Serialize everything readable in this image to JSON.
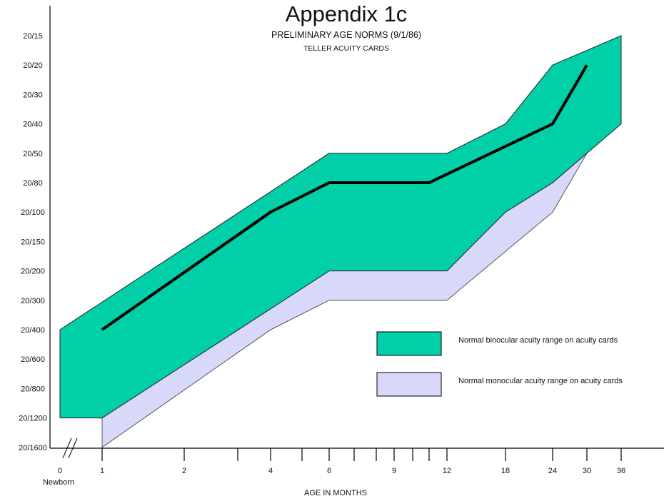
{
  "chart_data": {
    "type": "area",
    "title": "Appendix 1c",
    "subtitle": "PRELIMINARY AGE NORMS (9/1/86)",
    "subtitle2": "TELLER ACUITY CARDS",
    "xlabel": "AGE IN MONTHS",
    "ylabel": "",
    "x_ticks": [
      {
        "value": 0,
        "label": "0"
      },
      {
        "value": 1,
        "label": "1"
      },
      {
        "value": 2,
        "label": "2"
      },
      {
        "value": 3,
        "label": ""
      },
      {
        "value": 4,
        "label": "4"
      },
      {
        "value": 5,
        "label": ""
      },
      {
        "value": 6,
        "label": "6"
      },
      {
        "value": 7,
        "label": ""
      },
      {
        "value": 8,
        "label": ""
      },
      {
        "value": 9,
        "label": "9"
      },
      {
        "value": 10,
        "label": ""
      },
      {
        "value": 11,
        "label": ""
      },
      {
        "value": 12,
        "label": "12"
      },
      {
        "value": 18,
        "label": "18"
      },
      {
        "value": 24,
        "label": "24"
      },
      {
        "value": 30,
        "label": "30"
      },
      {
        "value": 36,
        "label": "36"
      }
    ],
    "x_sublabel": {
      "value": 0,
      "label": "Newborn"
    },
    "y_ticks": [
      "20/15",
      "20/20",
      "20/30",
      "20/40",
      "20/50",
      "20/80",
      "20/100",
      "20/150",
      "20/200",
      "20/300",
      "20/400",
      "20/600",
      "20/800",
      "20/1200",
      "20/1600"
    ],
    "series": [
      {
        "name": "Normal binocular acuity range on acuity cards",
        "color": "#00cfa8",
        "upper": [
          [
            0,
            "20/400"
          ],
          [
            6,
            "20/50"
          ],
          [
            12,
            "20/50"
          ],
          [
            18,
            "20/40"
          ],
          [
            24,
            "20/20"
          ],
          [
            36,
            "20/15"
          ]
        ],
        "lower": [
          [
            0,
            "20/1200"
          ],
          [
            1,
            "20/1200"
          ],
          [
            6,
            "20/200"
          ],
          [
            12,
            "20/200"
          ],
          [
            18,
            "20/100"
          ],
          [
            24,
            "20/80"
          ],
          [
            30,
            "20/50"
          ],
          [
            36,
            "20/40"
          ]
        ]
      },
      {
        "name": "Normal monocular acuity range on acuity cards",
        "color": "#d8d8fa",
        "upper": [
          [
            1,
            "20/1200"
          ],
          [
            6,
            "20/200"
          ],
          [
            12,
            "20/200"
          ],
          [
            18,
            "20/100"
          ],
          [
            24,
            "20/80"
          ],
          [
            30,
            "20/50"
          ]
        ],
        "lower": [
          [
            1,
            "20/1600"
          ],
          [
            4,
            "20/400"
          ],
          [
            6,
            "20/300"
          ],
          [
            12,
            "20/300"
          ],
          [
            24,
            "20/100"
          ],
          [
            30,
            "20/50"
          ]
        ]
      },
      {
        "name": "",
        "color": "#000000",
        "values": [
          [
            1,
            "20/400"
          ],
          [
            4,
            "20/100"
          ],
          [
            6,
            "20/80"
          ],
          [
            11,
            "20/80"
          ],
          [
            24,
            "20/40"
          ],
          [
            30,
            "20/20"
          ]
        ]
      }
    ],
    "legend": {
      "position": "bottom-right",
      "entries": [
        {
          "label": "Normal binocular acuity range on acuity cards",
          "color": "#00cfa8"
        },
        {
          "label": "Normal monocular acuity range on acuity cards",
          "color": "#d8d8fa"
        }
      ]
    },
    "grid": false
  }
}
